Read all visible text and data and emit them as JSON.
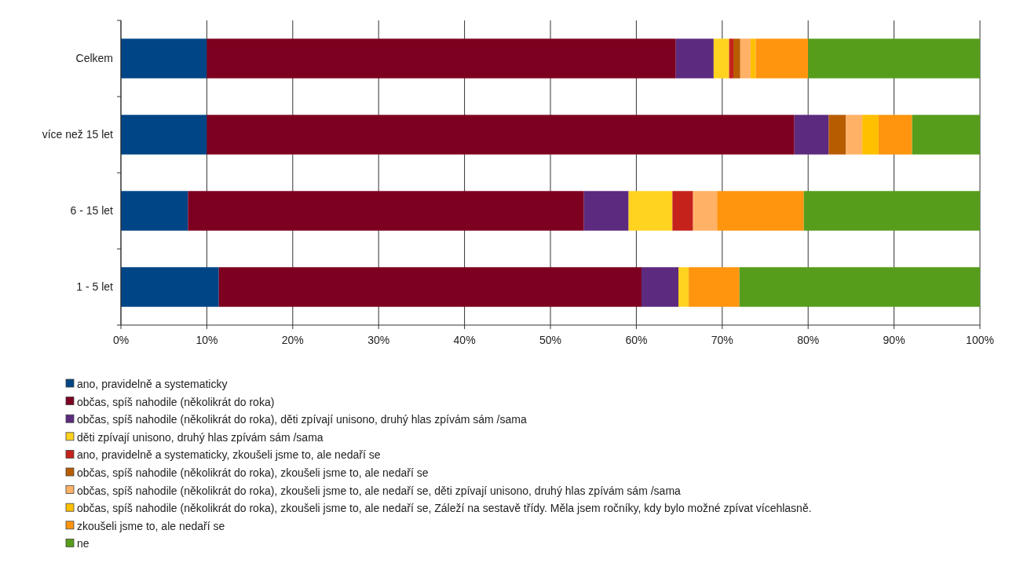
{
  "chart_data": {
    "type": "bar",
    "orientation": "horizontal",
    "stacked": true,
    "categories": [
      "Celkem",
      "více než 15 let",
      "6 - 15 let",
      "1 - 5 let"
    ],
    "series": [
      {
        "name": "ano, pravidelně a systematicky",
        "color": "#004586",
        "values": [
          10.0,
          10.0,
          7.8,
          11.4
        ]
      },
      {
        "name": "občas, spíš nahodile (několikrát do roka)",
        "color": "#7e0021",
        "values": [
          54.6,
          68.4,
          46.1,
          49.2
        ]
      },
      {
        "name": "občas, spíš nahodile (několikrát do roka), děti zpívají unisono, druhý hlas zpívám sám /sama",
        "color": "#5c2a7e",
        "values": [
          4.4,
          4.0,
          5.2,
          4.3
        ]
      },
      {
        "name": "děti zpívají unisono, druhý hlas zpívám sám /sama",
        "color": "#ffd320",
        "values": [
          1.8,
          0,
          5.1,
          1.2
        ]
      },
      {
        "name": "ano, pravidelně a systematicky, zkoušeli jsme to, ale nedaří se",
        "color": "#c5221c",
        "values": [
          0.5,
          0,
          2.4,
          0
        ]
      },
      {
        "name": "občas, spíš nahodile (několikrát do roka), zkoušeli jsme to, ale nedaří se",
        "color": "#b85c00",
        "values": [
          0.8,
          2.0,
          0,
          0
        ]
      },
      {
        "name": "občas, spíš nahodile (několikrát do roka), zkoušeli jsme to, ale nedaří se, děti zpívají unisono, druhý hlas zpívám sám /sama",
        "color": "#ffb266",
        "values": [
          1.2,
          1.9,
          2.8,
          0
        ]
      },
      {
        "name": "občas, spíš nahodile (několikrát do roka), zkoušeli jsme to, ale nedaří se, Záleží na sestavě třídy. Měla jsem ročníky, kdy bylo možné zpívat vícehlasně.",
        "color": "#ffc000",
        "values": [
          0.6,
          1.9,
          0,
          0
        ]
      },
      {
        "name": "zkoušeli jsme to, ale nedaří se",
        "color": "#ff950e",
        "values": [
          6.1,
          3.9,
          10.1,
          5.9
        ]
      },
      {
        "name": "ne",
        "color": "#579d1c",
        "values": [
          20.0,
          7.9,
          20.5,
          28.0
        ]
      }
    ],
    "xlim": [
      0,
      100
    ],
    "xticks": [
      {
        "value": 0,
        "label": "0%"
      },
      {
        "value": 10,
        "label": "10%"
      },
      {
        "value": 20,
        "label": "20%"
      },
      {
        "value": 30,
        "label": "30%"
      },
      {
        "value": 40,
        "label": "40%"
      },
      {
        "value": 50,
        "label": "50%"
      },
      {
        "value": 60,
        "label": "60%"
      },
      {
        "value": 70,
        "label": "70%"
      },
      {
        "value": 80,
        "label": "80%"
      },
      {
        "value": 90,
        "label": "90%"
      },
      {
        "value": 100,
        "label": "100%"
      }
    ],
    "grid": "x",
    "legend": "bottom"
  }
}
